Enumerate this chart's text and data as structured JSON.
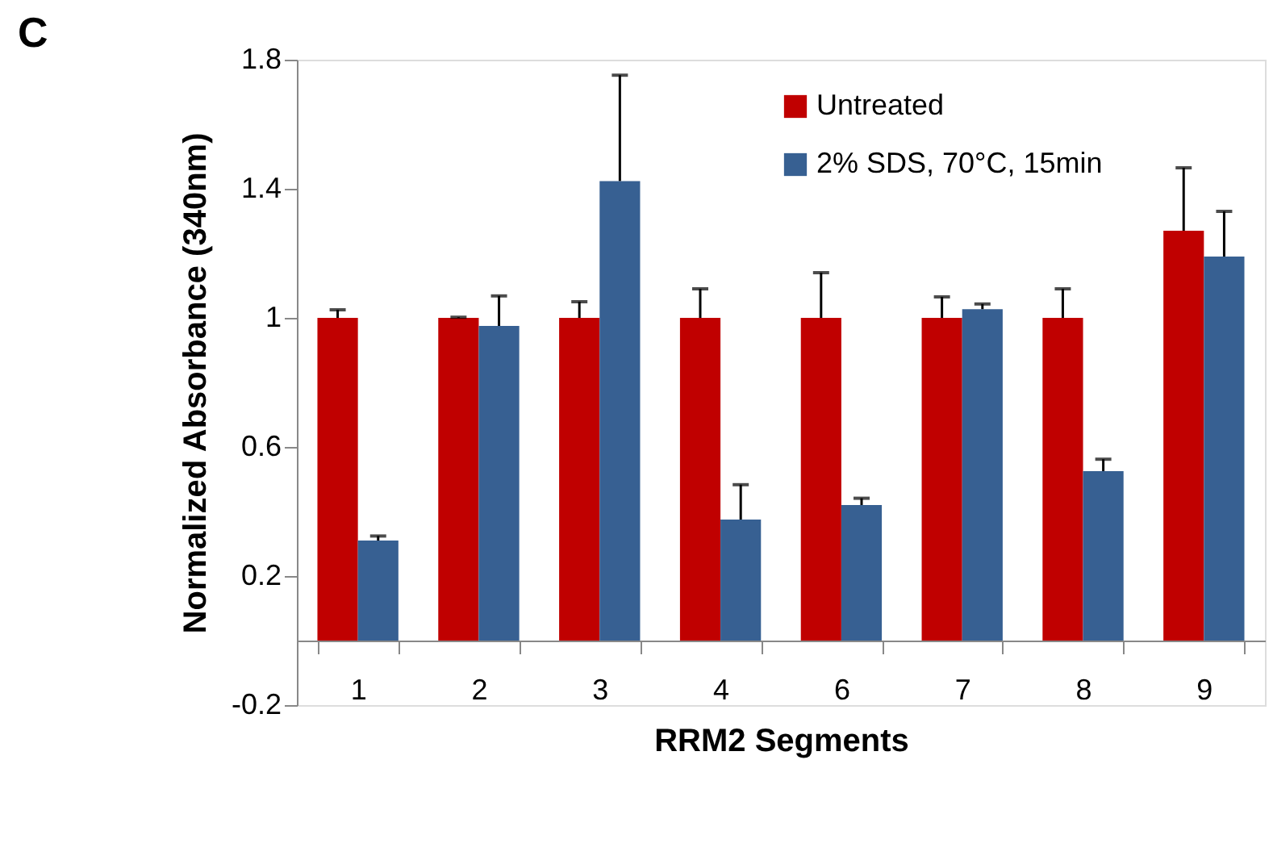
{
  "chart_data": {
    "type": "bar",
    "title": "C",
    "xlabel": "RRM2 Segments",
    "ylabel": "Normalized Absorbance (340nm)",
    "categories": [
      "1",
      "2",
      "3",
      "4",
      "6",
      "7",
      "8",
      "9"
    ],
    "series": [
      {
        "name": "Untreated",
        "color": "#c00000",
        "values": [
          1,
          1,
          1,
          1,
          1,
          1,
          1,
          1.27
        ],
        "errors": [
          [
            1,
            1.025
          ],
          [
            1,
            1.002
          ],
          [
            1,
            1.05
          ],
          [
            1,
            1.09
          ],
          [
            1,
            1.14
          ],
          [
            1,
            1.065
          ],
          [
            1,
            1.09
          ],
          [
            1.27,
            1.465
          ]
        ]
      },
      {
        "name": "2% SDS, 70°C, 15min",
        "color": "#376092",
        "values": [
          0.31,
          0.975,
          1.424,
          0.375,
          0.42,
          1.027,
          0.525,
          1.19
        ],
        "errors": [
          [
            0.31,
            0.324
          ],
          [
            0.975,
            1.068
          ],
          [
            1.424,
            1.752
          ],
          [
            0.375,
            0.483
          ],
          [
            0.42,
            0.441
          ],
          [
            1.027,
            1.043
          ],
          [
            0.525,
            0.562
          ],
          [
            1.19,
            1.33
          ]
        ]
      }
    ],
    "ylim": [
      -0.2,
      1.8
    ],
    "yticks": [
      -0.2,
      0.2,
      0.6,
      1,
      1.4,
      1.8
    ],
    "grid": false,
    "legend": "top right"
  }
}
